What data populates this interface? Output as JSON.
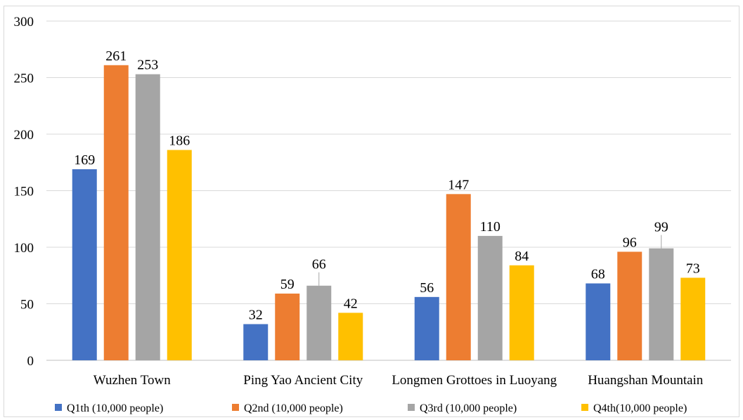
{
  "chart_data": {
    "type": "bar",
    "categories": [
      "Wuzhen Town",
      "Ping Yao Ancient City",
      "Longmen Grottoes in Luoyang",
      "Huangshan Mountain"
    ],
    "series": [
      {
        "name": "Q1th (10,000 people)",
        "color": "#4472C4",
        "values": [
          169,
          32,
          56,
          68
        ]
      },
      {
        "name": "Q2nd (10,000 people)",
        "color": "#ED7D31",
        "values": [
          261,
          59,
          147,
          96
        ]
      },
      {
        "name": "Q3rd (10,000 people)",
        "color": "#A5A5A5",
        "values": [
          253,
          66,
          110,
          99
        ]
      },
      {
        "name": "Q4th(10,000 people)",
        "color": "#FFC000",
        "values": [
          186,
          42,
          84,
          73
        ]
      }
    ],
    "yticks": [
      0,
      50,
      100,
      150,
      200,
      250,
      300
    ],
    "ylim": [
      0,
      300
    ],
    "grid": true,
    "legend_position": "bottom",
    "title": "",
    "xlabel": "",
    "ylabel": ""
  }
}
